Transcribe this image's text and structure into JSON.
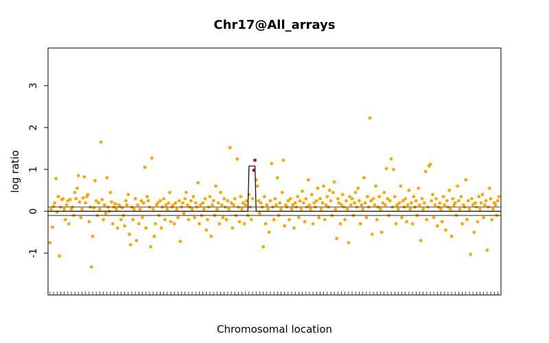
{
  "chart_data": {
    "type": "scatter",
    "title": "Chr17@All_arrays",
    "xlabel": "Chromosomal location",
    "ylabel": "log ratio",
    "ylim": [
      -2.0,
      3.9
    ],
    "yticks": [
      -1,
      0,
      1,
      2,
      3
    ],
    "ytick_labels": [
      "-1",
      "0",
      "1",
      "2",
      "3"
    ],
    "xlim": [
      0,
      600
    ],
    "reference_lines": [
      -0.1,
      0.0,
      0.1
    ],
    "point_color": "#FFA500",
    "highlight_color": "#E00000",
    "segment_color": "#000000",
    "grid": false,
    "series": [
      {
        "values": [
          -0.75,
          0.05,
          -0.38,
          0.12,
          0.2,
          0.78,
          -0.02,
          0.35,
          -1.07,
          0.1,
          0.28,
          0.3,
          0.05,
          -0.2,
          0.15,
          0.25,
          -0.3,
          0.28,
          0.05,
          0.1,
          -0.1,
          0.45,
          0.3,
          0.55,
          0.85,
          0.22,
          -0.15,
          0.05,
          0.32,
          0.82,
          0.2,
          0.35,
          0.4,
          -0.25,
          0.1,
          -1.33,
          -0.6,
          0.08,
          0.73,
          0.25,
          -0.1,
          0.2,
          0.05,
          1.65,
          0.28,
          -0.2,
          0.15,
          -0.05,
          0.8,
          0.1,
          0.0,
          0.45,
          0.22,
          -0.3,
          0.1,
          0.18,
          0.05,
          -0.4,
          0.15,
          0.12,
          -0.2,
          0.08,
          -0.1,
          -0.35,
          0.25,
          0.15,
          0.4,
          -0.55,
          -0.8,
          0.1,
          -0.2,
          0.05,
          0.3,
          -0.7,
          0.15,
          -0.3,
          0.05,
          0.25,
          -0.15,
          0.2,
          1.05,
          -0.4,
          0.35,
          0.25,
          0.1,
          -0.85,
          1.27,
          0.05,
          -0.6,
          -0.3,
          0.15,
          0.2,
          -0.1,
          0.25,
          -0.4,
          0.1,
          0.3,
          -0.2,
          0.15,
          0.05,
          0.2,
          0.45,
          -0.25,
          0.1,
          0.15,
          -0.3,
          0.2,
          0.05,
          -0.15,
          0.25,
          -0.72,
          0.1,
          0.2,
          -0.05,
          0.3,
          0.45,
          0.15,
          -0.2,
          0.1,
          0.25,
          0.05,
          0.35,
          -0.15,
          0.2,
          0.1,
          0.68,
          -0.3,
          0.15,
          -0.1,
          0.2,
          0.05,
          0.3,
          -0.45,
          -0.2,
          0.1,
          0.35,
          -0.6,
          0.15,
          0.25,
          -0.1,
          0.6,
          0.05,
          0.2,
          -0.3,
          0.45,
          0.15,
          -0.15,
          0.3,
          0.1,
          -0.2,
          0.25,
          0.05,
          1.52,
          0.2,
          -0.4,
          0.15,
          0.3,
          -0.1,
          1.25,
          0.1,
          -0.25,
          0.35,
          0.05,
          0.2,
          -0.3,
          0.15,
          0.25,
          -0.1,
          0.4,
          0.1,
          -0.2,
          0.3,
          0.98,
          1.22,
          0.75,
          0.6,
          0.25,
          -0.05,
          0.2,
          0.1,
          -0.85,
          0.35,
          -0.3,
          0.15,
          0.05,
          -0.5,
          0.25,
          1.14,
          0.1,
          -0.2,
          0.3,
          0.15,
          0.8,
          -0.1,
          0.2,
          0.05,
          0.45,
          1.22,
          -0.35,
          0.15,
          0.1,
          0.25,
          -0.2,
          0.3,
          0.05,
          0.15,
          -0.4,
          0.2,
          0.1,
          0.35,
          -0.15,
          0.25,
          0.05,
          0.48,
          0.2,
          -0.25,
          0.3,
          0.1,
          0.75,
          0.15,
          0.05,
          0.4,
          -0.3,
          0.2,
          0.1,
          0.25,
          0.55,
          -0.15,
          0.3,
          0.05,
          0.2,
          0.6,
          -0.2,
          0.15,
          0.35,
          0.1,
          0.5,
          0.25,
          -0.1,
          0.45,
          0.7,
          0.05,
          -0.65,
          0.3,
          0.2,
          -0.3,
          0.15,
          0.4,
          0.1,
          -0.2,
          0.25,
          0.05,
          -0.75,
          0.35,
          0.15,
          0.3,
          -0.1,
          0.2,
          0.45,
          0.1,
          0.55,
          0.25,
          -0.3,
          0.15,
          0.05,
          0.8,
          0.2,
          -0.15,
          0.35,
          0.1,
          2.23,
          0.25,
          -0.55,
          0.3,
          0.15,
          0.6,
          -0.2,
          0.1,
          0.35,
          0.05,
          -0.5,
          0.2,
          0.45,
          0.15,
          1.02,
          0.3,
          -0.1,
          0.25,
          1.25,
          0.1,
          1.0,
          0.35,
          -0.3,
          0.15,
          0.05,
          0.2,
          0.6,
          -0.15,
          0.25,
          0.1,
          0.3,
          -0.25,
          0.15,
          0.5,
          0.05,
          0.2,
          -0.3,
          0.35,
          0.1,
          0.25,
          -0.1,
          0.55,
          0.15,
          -0.7,
          0.3,
          0.05,
          0.2,
          0.95,
          -0.2,
          0.1,
          1.08,
          1.12,
          0.25,
          0.4,
          -0.15,
          0.15,
          0.3,
          -0.35,
          0.1,
          0.2,
          0.05,
          -0.25,
          0.35,
          0.15,
          -0.45,
          0.25,
          0.1,
          0.5,
          0.05,
          -0.6,
          0.3,
          0.15,
          0.2,
          -0.1,
          0.6,
          0.25,
          0.05,
          0.35,
          -0.3,
          0.15,
          0.1,
          0.75,
          -0.2,
          0.25,
          0.05,
          -1.03,
          0.3,
          0.15,
          -0.5,
          0.2,
          0.1,
          -0.25,
          0.35,
          0.05,
          0.2,
          0.4,
          -0.15,
          0.15,
          0.25,
          -0.93,
          0.1,
          0.55,
          0.3,
          -0.2,
          0.05,
          0.2,
          0.15,
          -0.1,
          0.25,
          0.35
        ],
        "highlight_indices": [
          172,
          173
        ],
        "segments": [
          {
            "from_index": 0,
            "to_index": 167,
            "value": 0.0
          },
          {
            "from_index": 168,
            "to_index": 173,
            "value": 1.08
          },
          {
            "from_index": 174,
            "to_index": 419,
            "value": 0.0
          }
        ]
      }
    ]
  }
}
